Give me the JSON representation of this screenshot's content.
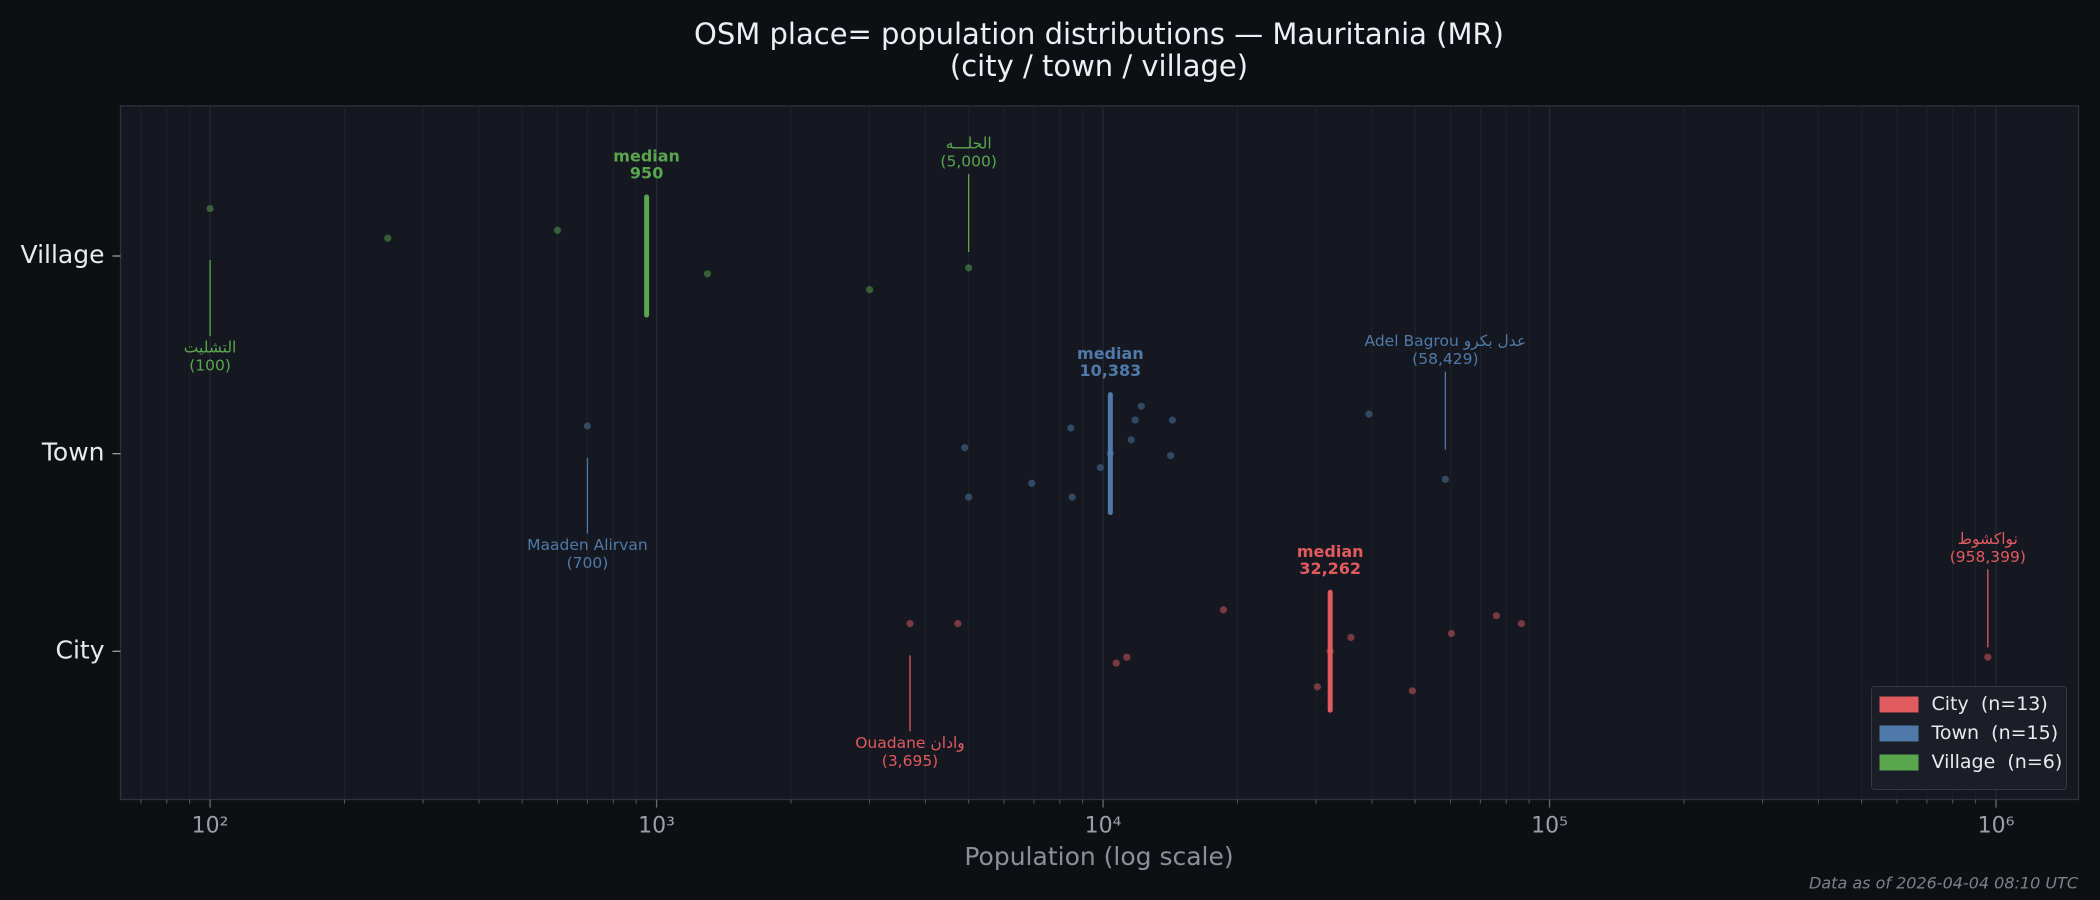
{
  "chart_data": {
    "type": "strip",
    "title": "OSM place= population distributions — Mauritania (MR)",
    "subtitle": "(city / town / village)",
    "xlabel": "Population (log scale)",
    "note": "Data as of 2026-04-04 08:10 UTC",
    "xscale": "log",
    "xlim": [
      63,
      1530000
    ],
    "xticks": [
      {
        "value": 100,
        "label": "10²"
      },
      {
        "value": 1000,
        "label": "10³"
      },
      {
        "value": 10000,
        "label": "10⁴"
      },
      {
        "value": 100000,
        "label": "10⁵"
      },
      {
        "value": 1000000,
        "label": "10⁶"
      }
    ],
    "xminor_ticks": [
      70,
      80,
      90,
      200,
      300,
      400,
      500,
      600,
      700,
      800,
      900,
      2000,
      3000,
      4000,
      5000,
      6000,
      7000,
      8000,
      9000,
      20000,
      30000,
      40000,
      50000,
      60000,
      70000,
      80000,
      90000,
      200000,
      300000,
      400000,
      500000,
      600000,
      700000,
      800000,
      900000
    ],
    "ylim": [
      -0.75,
      2.76
    ],
    "yticks": [
      {
        "value": 0,
        "label": "City"
      },
      {
        "value": 1,
        "label": "Town"
      },
      {
        "value": 2,
        "label": "Village"
      }
    ],
    "grid": true,
    "legend": "lower right",
    "median_caption": "median",
    "series": [
      {
        "name": "City  (n=13)",
        "color": "#e05a5f",
        "x": [
          3695,
          4730,
          10700,
          11300,
          18600,
          30200,
          32262,
          35900,
          49300,
          60300,
          76000,
          86500,
          958399
        ],
        "y": [
          0.14,
          0.14,
          -0.06,
          -0.03,
          0.21,
          -0.18,
          0.0,
          0.07,
          -0.2,
          0.09,
          0.18,
          0.14,
          -0.03
        ],
        "median": {
          "value": 32262,
          "label": "32,262"
        },
        "highlights": [
          {
            "name": "Ouadane وادان",
            "value": 3695,
            "label": "(3,695)"
          },
          {
            "name": "نواكشوط",
            "value": 958399,
            "label": "(958,399)"
          }
        ]
      },
      {
        "name": "Town  (n=15)",
        "color": "#4f79a8",
        "x": [
          700,
          4900,
          5000,
          6920,
          8470,
          8530,
          9860,
          10383,
          11560,
          11800,
          12180,
          14300,
          14170,
          39400,
          58429
        ],
        "y": [
          1.14,
          1.03,
          0.78,
          0.85,
          1.13,
          0.78,
          0.93,
          1.0,
          1.07,
          1.17,
          1.24,
          1.17,
          0.99,
          1.2,
          0.87
        ],
        "median": {
          "value": 10383,
          "label": "10,383"
        },
        "highlights": [
          {
            "name": "Maaden Alirvan",
            "value": 700,
            "label": "(700)"
          },
          {
            "name": "Adel Bagrou عدل بكرو",
            "value": 58429,
            "label": "(58,429)"
          }
        ]
      },
      {
        "name": "Village  (n=6)",
        "color": "#5aa64f",
        "x": [
          100,
          250,
          600,
          1300,
          3000,
          5000
        ],
        "y": [
          2.24,
          2.09,
          2.13,
          1.91,
          1.83,
          1.94
        ],
        "median": 950,
        "highlights": [
          {
            "name": "التشليت",
            "value": 100,
            "label": "(100)"
          },
          {
            "name": "الحلـــه",
            "value": 5000,
            "label": "(5,000)"
          }
        ]
      }
    ]
  }
}
